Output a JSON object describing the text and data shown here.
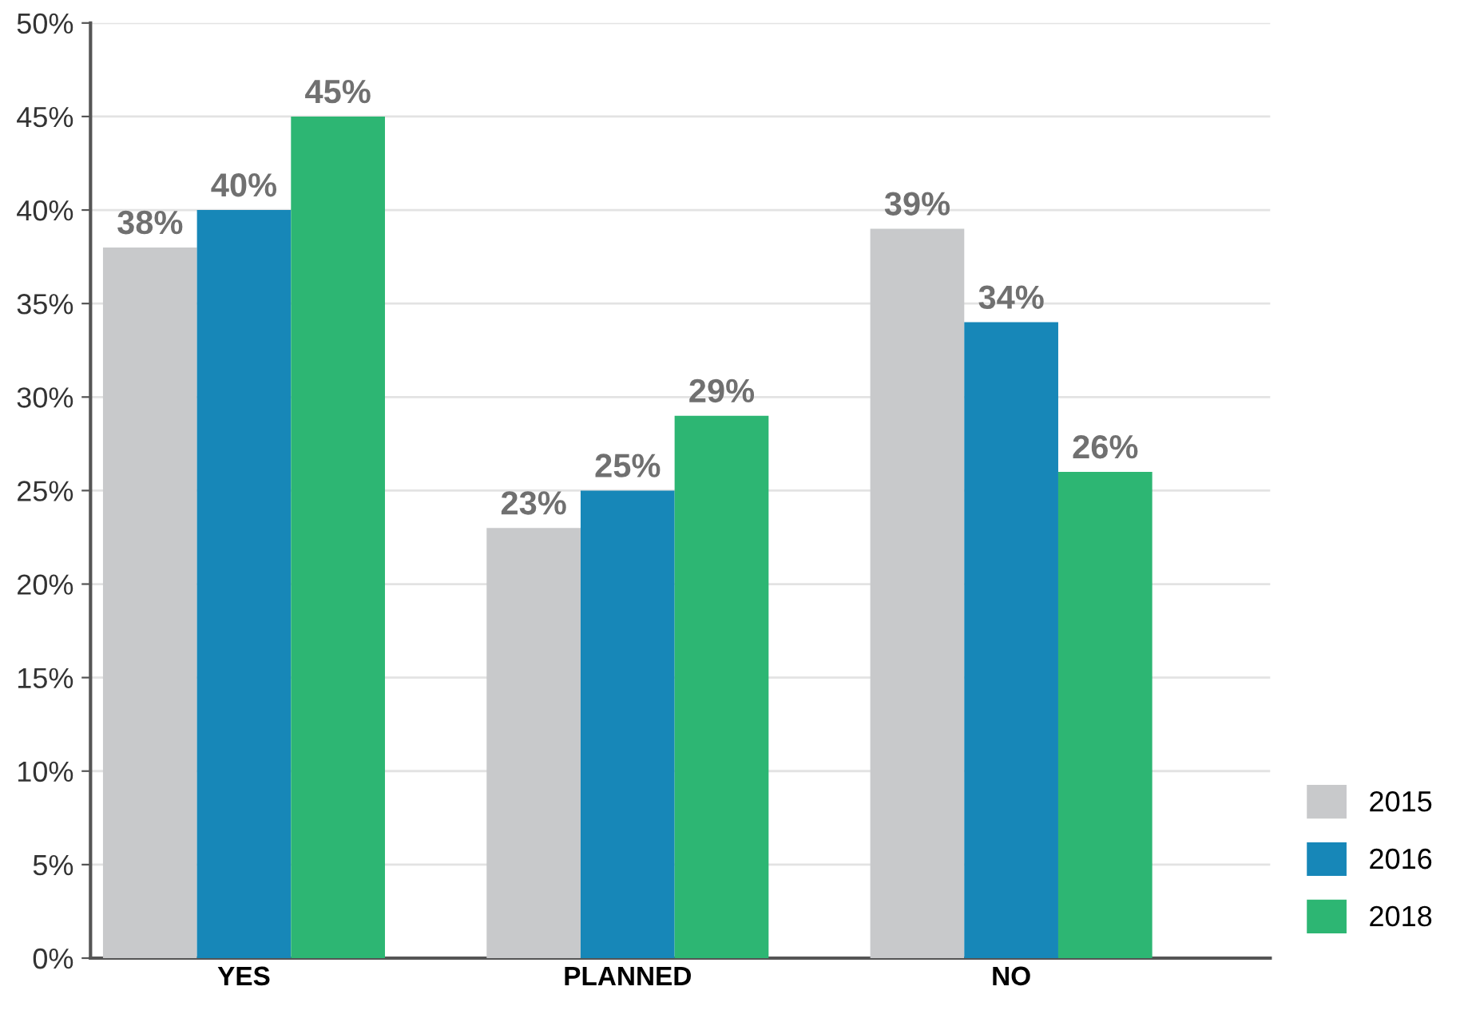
{
  "chart_data": {
    "type": "bar",
    "categories": [
      "YES",
      "PLANNED",
      "NO"
    ],
    "series": [
      {
        "name": "2015",
        "color": "#c8c9cb",
        "values": [
          38,
          23,
          39
        ],
        "value_labels": [
          "38%",
          "23%",
          "39%"
        ]
      },
      {
        "name": "2016",
        "color": "#1787b8",
        "values": [
          40,
          25,
          34
        ],
        "value_labels": [
          "40%",
          "25%",
          "34%"
        ]
      },
      {
        "name": "2018",
        "color": "#2db673",
        "values": [
          45,
          29,
          26
        ],
        "value_labels": [
          "45%",
          "29%",
          "26%"
        ]
      }
    ],
    "ylim": [
      0,
      50
    ],
    "yticks": [
      {
        "value": 0,
        "label": "0%"
      },
      {
        "value": 5,
        "label": "5%"
      },
      {
        "value": 10,
        "label": "10%"
      },
      {
        "value": 15,
        "label": "15%"
      },
      {
        "value": 20,
        "label": "20%"
      },
      {
        "value": 25,
        "label": "25%"
      },
      {
        "value": 30,
        "label": "30%"
      },
      {
        "value": 35,
        "label": "35%"
      },
      {
        "value": 40,
        "label": "40%"
      },
      {
        "value": 45,
        "label": "45%"
      },
      {
        "value": 50,
        "label": "50%"
      }
    ],
    "grid": "y",
    "legend": "bottom right"
  }
}
